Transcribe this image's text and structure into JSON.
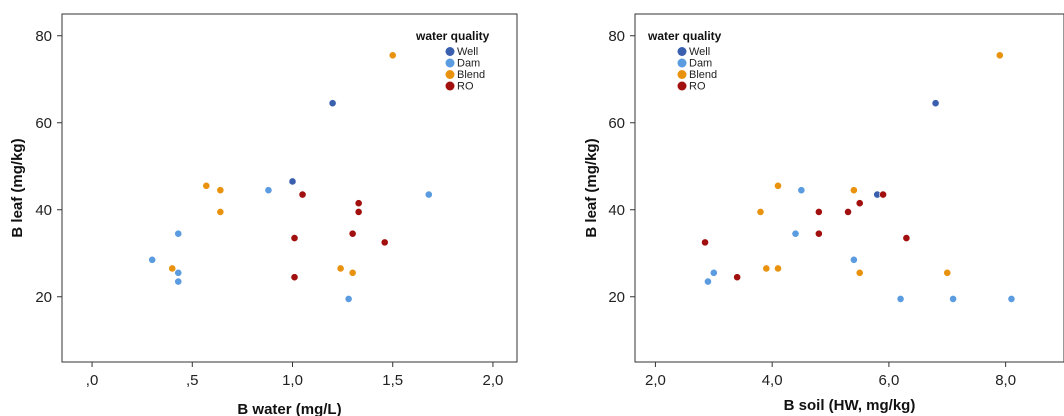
{
  "colors": {
    "Well": "#3a5fae",
    "Dam": "#5b9be0",
    "Blend": "#e8920e",
    "RO": "#a10f0f"
  },
  "chart_data": [
    {
      "type": "scatter",
      "xlabel": "B water (mg/L)",
      "ylabel": "B leaf (mg/kg)",
      "xlim": [
        -0.15,
        2.12
      ],
      "ylim": [
        5,
        85
      ],
      "x_ticks": [
        0.0,
        0.5,
        1.0,
        1.5,
        2.0
      ],
      "x_tick_labels": [
        ",0",
        ",5",
        "1,0",
        "1,5",
        "2,0"
      ],
      "y_ticks": [
        20,
        40,
        60,
        80
      ],
      "y_tick_labels": [
        "20",
        "40",
        "60",
        "80"
      ],
      "legend": {
        "title": "water quality",
        "placement": "top-right",
        "entries": [
          "Well",
          "Dam",
          "Blend",
          "RO"
        ]
      },
      "series": [
        {
          "name": "Well",
          "points": [
            [
              1.0,
              46.5
            ],
            [
              1.2,
              64.5
            ]
          ]
        },
        {
          "name": "Dam",
          "points": [
            [
              0.3,
              28.5
            ],
            [
              0.43,
              34.5
            ],
            [
              0.43,
              25.5
            ],
            [
              0.43,
              23.5
            ],
            [
              0.88,
              44.5
            ],
            [
              1.28,
              19.5
            ],
            [
              1.68,
              43.5
            ]
          ]
        },
        {
          "name": "Blend",
          "points": [
            [
              0.4,
              26.5
            ],
            [
              0.57,
              45.5
            ],
            [
              0.64,
              44.5
            ],
            [
              0.64,
              39.5
            ],
            [
              1.24,
              26.5
            ],
            [
              1.3,
              25.5
            ],
            [
              1.5,
              75.5
            ]
          ]
        },
        {
          "name": "RO",
          "points": [
            [
              1.01,
              24.5
            ],
            [
              1.01,
              33.5
            ],
            [
              1.05,
              43.5
            ],
            [
              1.3,
              34.5
            ],
            [
              1.33,
              41.5
            ],
            [
              1.33,
              39.5
            ],
            [
              1.46,
              32.5
            ]
          ]
        }
      ]
    },
    {
      "type": "scatter",
      "xlabel": "B soil (HW, mg/kg)",
      "ylabel": "B leaf (mg/kg)",
      "xlim": [
        1.65,
        9.0
      ],
      "ylim": [
        5,
        85
      ],
      "x_ticks": [
        2.0,
        4.0,
        6.0,
        8.0
      ],
      "x_tick_labels": [
        "2,0",
        "4,0",
        "6,0",
        "8,0"
      ],
      "y_ticks": [
        20,
        40,
        60,
        80
      ],
      "y_tick_labels": [
        "20",
        "40",
        "60",
        "80"
      ],
      "legend": {
        "title": "water quality",
        "placement": "top-left",
        "entries": [
          "Well",
          "Dam",
          "Blend",
          "RO"
        ]
      },
      "series": [
        {
          "name": "Well",
          "points": [
            [
              6.8,
              64.5
            ],
            [
              5.8,
              43.5
            ]
          ]
        },
        {
          "name": "Dam",
          "points": [
            [
              2.9,
              23.5
            ],
            [
              3.0,
              25.5
            ],
            [
              4.4,
              34.5
            ],
            [
              4.5,
              44.5
            ],
            [
              5.4,
              28.5
            ],
            [
              6.2,
              19.5
            ],
            [
              7.1,
              19.5
            ],
            [
              8.1,
              19.5
            ]
          ]
        },
        {
          "name": "Blend",
          "points": [
            [
              3.8,
              39.5
            ],
            [
              3.9,
              26.5
            ],
            [
              4.1,
              26.5
            ],
            [
              4.1,
              45.5
            ],
            [
              5.4,
              44.5
            ],
            [
              5.5,
              25.5
            ],
            [
              7.0,
              25.5
            ],
            [
              7.9,
              75.5
            ]
          ]
        },
        {
          "name": "RO",
          "points": [
            [
              2.85,
              32.5
            ],
            [
              3.4,
              24.5
            ],
            [
              4.8,
              39.5
            ],
            [
              4.8,
              34.5
            ],
            [
              5.3,
              39.5
            ],
            [
              5.5,
              41.5
            ],
            [
              5.9,
              43.5
            ],
            [
              6.3,
              33.5
            ]
          ]
        }
      ]
    }
  ]
}
